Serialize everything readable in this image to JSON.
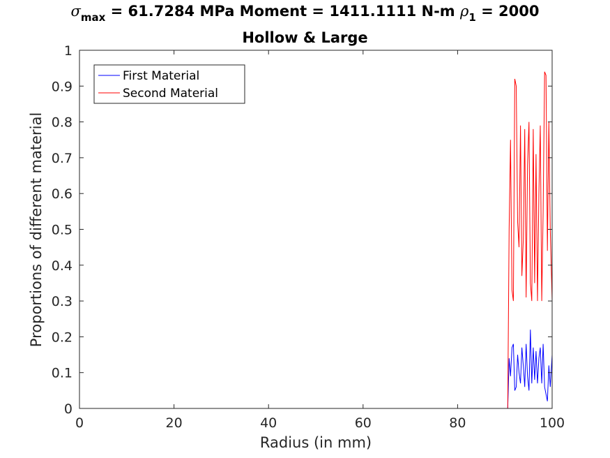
{
  "title": {
    "sigma_symbol": "σ",
    "sigma_sub": "max",
    "sigma_text": " = 61.7284 MPa Moment = 1411.1111 N-m  ",
    "rho_symbol": "ρ",
    "rho_sub": "1",
    "rho_text": " = 2000",
    "line2": "Hollow & Large"
  },
  "chart_data": {
    "type": "line",
    "xlabel": "Radius (in mm)",
    "ylabel": "Proportions of different material",
    "xlim": [
      0,
      100
    ],
    "ylim": [
      0,
      1
    ],
    "xticks": [
      "0",
      "20",
      "40",
      "60",
      "80",
      "100"
    ],
    "yticks": [
      "0",
      "0.1",
      "0.2",
      "0.3",
      "0.4",
      "0.5",
      "0.6",
      "0.7",
      "0.8",
      "0.9",
      "1"
    ],
    "grid": false,
    "legend_position": "top-left",
    "series": [
      {
        "name": "First Material",
        "color": "#0000ff",
        "x": [
          0,
          90.6,
          90.9,
          91.2,
          91.5,
          91.8,
          92.1,
          92.4,
          92.7,
          93.0,
          93.3,
          93.6,
          93.9,
          94.2,
          94.5,
          94.8,
          95.1,
          95.4,
          95.7,
          96.0,
          96.3,
          96.6,
          96.9,
          97.2,
          97.5,
          97.8,
          98.1,
          98.4,
          98.7,
          99.0,
          99.3,
          99.6,
          100
        ],
        "y": [
          0,
          0,
          0.14,
          0.09,
          0.17,
          0.18,
          0.05,
          0.06,
          0.15,
          0.1,
          0.07,
          0.17,
          0.12,
          0.06,
          0.18,
          0.09,
          0.05,
          0.22,
          0.07,
          0.17,
          0.08,
          0.16,
          0.07,
          0.14,
          0.17,
          0.07,
          0.18,
          0.06,
          0.04,
          0.02,
          0.12,
          0.06,
          0.15
        ]
      },
      {
        "name": "Second Material",
        "color": "#ff0000",
        "x": [
          0,
          90.6,
          90.9,
          91.2,
          91.5,
          91.8,
          92.1,
          92.4,
          92.7,
          93.0,
          93.3,
          93.6,
          93.9,
          94.2,
          94.5,
          94.8,
          95.1,
          95.4,
          95.7,
          96.0,
          96.3,
          96.6,
          96.9,
          97.2,
          97.5,
          97.8,
          98.1,
          98.4,
          98.7,
          99.0,
          99.3,
          99.6,
          100
        ],
        "y": [
          0,
          0,
          0.5,
          0.75,
          0.33,
          0.3,
          0.92,
          0.9,
          0.52,
          0.45,
          0.79,
          0.37,
          0.47,
          0.78,
          0.31,
          0.68,
          0.8,
          0.35,
          0.3,
          0.78,
          0.35,
          0.71,
          0.3,
          0.6,
          0.79,
          0.3,
          0.55,
          0.94,
          0.93,
          0.44,
          0.8,
          0.5,
          0.3
        ]
      }
    ]
  }
}
